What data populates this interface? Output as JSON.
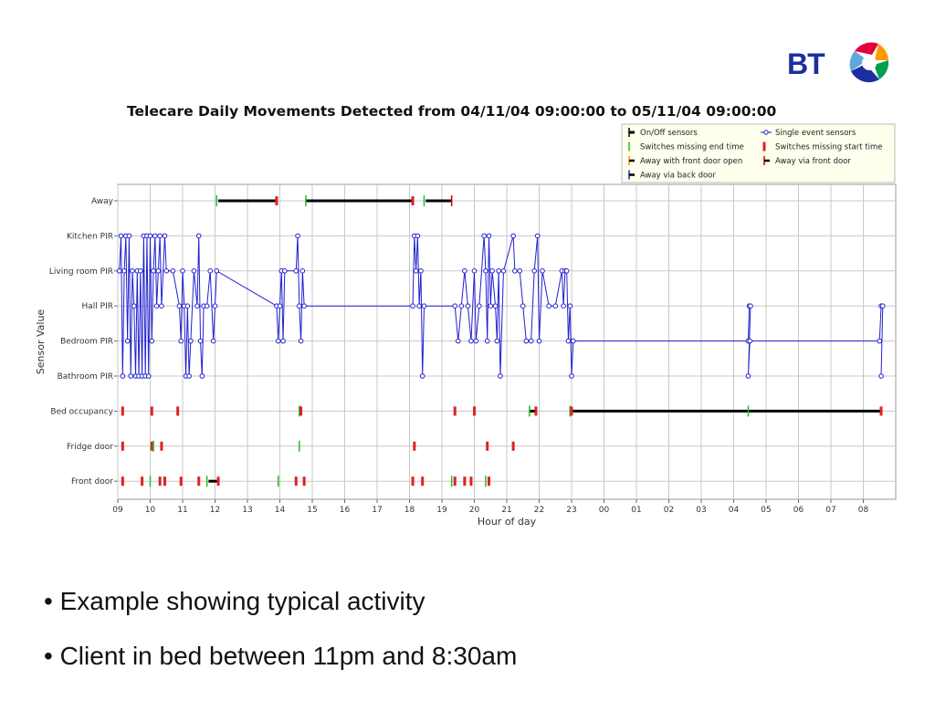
{
  "logo": {
    "text": "BT"
  },
  "bullets": [
    "• Example showing typical activity",
    "• Client in bed between 11pm and 8:30am"
  ],
  "colors": {
    "onoff": "#000000",
    "single": "#2020d0",
    "missing_end": "#22bb22",
    "missing_start": "#dd2222",
    "away_front_open": "#ff9900",
    "away_front": "#cc0000",
    "away_back": "#2020d0",
    "grid": "#c8c8c8"
  },
  "chart_data": {
    "type": "scatter",
    "title": "Telecare Daily Movements Detected from 04/11/04 09:00:00 to 05/11/04 09:00:00",
    "xlabel": "Hour of day",
    "ylabel": "Sensor Value",
    "xlim": [
      9,
      33
    ],
    "x_ticks": [
      "09",
      "10",
      "11",
      "12",
      "13",
      "14",
      "15",
      "16",
      "17",
      "18",
      "19",
      "20",
      "21",
      "22",
      "23",
      "00",
      "01",
      "02",
      "03",
      "04",
      "05",
      "06",
      "07",
      "08"
    ],
    "categories": [
      "Away",
      "Kitchen PIR",
      "Living room PIR",
      "Hall PIR",
      "Bedroom PIR",
      "Bathroom PIR",
      "Bed occupancy",
      "Fridge door",
      "Front door"
    ],
    "legend": {
      "position": "top-right",
      "entries": [
        {
          "label": "On/Off sensors",
          "symbol": "onoff"
        },
        {
          "label": "Single event sensors",
          "symbol": "single"
        },
        {
          "label": "Switches missing end time",
          "symbol": "missing_end"
        },
        {
          "label": "Switches missing start time",
          "symbol": "missing_start"
        },
        {
          "label": "Away with front door open",
          "symbol": "away_front_open"
        },
        {
          "label": "Away via front door",
          "symbol": "away_front"
        },
        {
          "label": "Away via back door",
          "symbol": "away_back"
        }
      ]
    },
    "onoff_intervals": [
      {
        "sensor": "Away",
        "start": 12.1,
        "end": 13.9
      },
      {
        "sensor": "Away",
        "start": 14.8,
        "end": 18.1
      },
      {
        "sensor": "Away",
        "start": 18.5,
        "end": 19.3
      },
      {
        "sensor": "Front door",
        "start": 11.8,
        "end": 12.1
      },
      {
        "sensor": "Bed occupancy",
        "start": 21.7,
        "end": 21.9
      },
      {
        "sensor": "Bed occupancy",
        "start": 23.0,
        "end": 28.45
      },
      {
        "sensor": "Bed occupancy",
        "start": 28.45,
        "end": 32.55
      }
    ],
    "event_ticks": [
      {
        "sensor": "Away",
        "x": 12.05,
        "kind": "missing_end"
      },
      {
        "sensor": "Away",
        "x": 13.9,
        "kind": "missing_start"
      },
      {
        "sensor": "Away",
        "x": 14.8,
        "kind": "missing_end"
      },
      {
        "sensor": "Away",
        "x": 18.1,
        "kind": "missing_start"
      },
      {
        "sensor": "Away",
        "x": 18.45,
        "kind": "missing_end"
      },
      {
        "sensor": "Away",
        "x": 19.3,
        "kind": "away_front"
      },
      {
        "sensor": "Bed occupancy",
        "x": 9.15,
        "kind": "missing_start"
      },
      {
        "sensor": "Bed occupancy",
        "x": 10.05,
        "kind": "missing_start"
      },
      {
        "sensor": "Bed occupancy",
        "x": 10.85,
        "kind": "missing_start"
      },
      {
        "sensor": "Bed occupancy",
        "x": 14.6,
        "kind": "missing_end"
      },
      {
        "sensor": "Bed occupancy",
        "x": 14.65,
        "kind": "missing_start"
      },
      {
        "sensor": "Bed occupancy",
        "x": 19.4,
        "kind": "missing_start"
      },
      {
        "sensor": "Bed occupancy",
        "x": 20.0,
        "kind": "missing_start"
      },
      {
        "sensor": "Bed occupancy",
        "x": 21.7,
        "kind": "missing_end"
      },
      {
        "sensor": "Bed occupancy",
        "x": 21.9,
        "kind": "missing_start"
      },
      {
        "sensor": "Bed occupancy",
        "x": 22.95,
        "kind": "missing_end"
      },
      {
        "sensor": "Bed occupancy",
        "x": 23.0,
        "kind": "missing_start"
      },
      {
        "sensor": "Bed occupancy",
        "x": 28.45,
        "kind": "missing_end"
      },
      {
        "sensor": "Bed occupancy",
        "x": 32.55,
        "kind": "missing_start"
      },
      {
        "sensor": "Fridge door",
        "x": 9.15,
        "kind": "missing_start"
      },
      {
        "sensor": "Fridge door",
        "x": 10.05,
        "kind": "missing_start"
      },
      {
        "sensor": "Fridge door",
        "x": 10.1,
        "kind": "missing_end"
      },
      {
        "sensor": "Fridge door",
        "x": 10.35,
        "kind": "missing_start"
      },
      {
        "sensor": "Fridge door",
        "x": 14.6,
        "kind": "missing_end"
      },
      {
        "sensor": "Fridge door",
        "x": 18.15,
        "kind": "missing_start"
      },
      {
        "sensor": "Fridge door",
        "x": 20.4,
        "kind": "missing_start"
      },
      {
        "sensor": "Fridge door",
        "x": 21.2,
        "kind": "missing_start"
      },
      {
        "sensor": "Front door",
        "x": 9.15,
        "kind": "missing_start"
      },
      {
        "sensor": "Front door",
        "x": 9.75,
        "kind": "missing_start"
      },
      {
        "sensor": "Front door",
        "x": 10.0,
        "kind": "missing_end"
      },
      {
        "sensor": "Front door",
        "x": 10.3,
        "kind": "missing_start"
      },
      {
        "sensor": "Front door",
        "x": 10.45,
        "kind": "missing_start"
      },
      {
        "sensor": "Front door",
        "x": 10.95,
        "kind": "missing_start"
      },
      {
        "sensor": "Front door",
        "x": 11.5,
        "kind": "missing_start"
      },
      {
        "sensor": "Front door",
        "x": 11.75,
        "kind": "missing_end"
      },
      {
        "sensor": "Front door",
        "x": 12.1,
        "kind": "missing_start"
      },
      {
        "sensor": "Front door",
        "x": 13.95,
        "kind": "missing_end"
      },
      {
        "sensor": "Front door",
        "x": 14.5,
        "kind": "missing_start"
      },
      {
        "sensor": "Front door",
        "x": 14.75,
        "kind": "missing_start"
      },
      {
        "sensor": "Front door",
        "x": 18.1,
        "kind": "missing_start"
      },
      {
        "sensor": "Front door",
        "x": 18.4,
        "kind": "missing_start"
      },
      {
        "sensor": "Front door",
        "x": 19.3,
        "kind": "missing_end"
      },
      {
        "sensor": "Front door",
        "x": 19.4,
        "kind": "missing_start"
      },
      {
        "sensor": "Front door",
        "x": 19.7,
        "kind": "missing_start"
      },
      {
        "sensor": "Front door",
        "x": 19.9,
        "kind": "missing_start"
      },
      {
        "sensor": "Front door",
        "x": 20.35,
        "kind": "missing_end"
      },
      {
        "sensor": "Front door",
        "x": 20.45,
        "kind": "missing_start"
      }
    ],
    "single_event_series": [
      {
        "x": 9.05,
        "y": "Living room PIR"
      },
      {
        "x": 9.1,
        "y": "Kitchen PIR"
      },
      {
        "x": 9.15,
        "y": "Bathroom PIR"
      },
      {
        "x": 9.2,
        "y": "Living room PIR"
      },
      {
        "x": 9.25,
        "y": "Kitchen PIR"
      },
      {
        "x": 9.3,
        "y": "Bedroom PIR"
      },
      {
        "x": 9.35,
        "y": "Kitchen PIR"
      },
      {
        "x": 9.4,
        "y": "Bathroom PIR"
      },
      {
        "x": 9.45,
        "y": "Living room PIR"
      },
      {
        "x": 9.5,
        "y": "Hall PIR"
      },
      {
        "x": 9.55,
        "y": "Bathroom PIR"
      },
      {
        "x": 9.6,
        "y": "Living room PIR"
      },
      {
        "x": 9.65,
        "y": "Bathroom PIR"
      },
      {
        "x": 9.7,
        "y": "Living room PIR"
      },
      {
        "x": 9.75,
        "y": "Bathroom PIR"
      },
      {
        "x": 9.8,
        "y": "Kitchen PIR"
      },
      {
        "x": 9.85,
        "y": "Bathroom PIR"
      },
      {
        "x": 9.9,
        "y": "Kitchen PIR"
      },
      {
        "x": 9.95,
        "y": "Bathroom PIR"
      },
      {
        "x": 10.0,
        "y": "Kitchen PIR"
      },
      {
        "x": 10.05,
        "y": "Bedroom PIR"
      },
      {
        "x": 10.1,
        "y": "Living room PIR"
      },
      {
        "x": 10.15,
        "y": "Kitchen PIR"
      },
      {
        "x": 10.2,
        "y": "Hall PIR"
      },
      {
        "x": 10.25,
        "y": "Living room PIR"
      },
      {
        "x": 10.3,
        "y": "Kitchen PIR"
      },
      {
        "x": 10.35,
        "y": "Hall PIR"
      },
      {
        "x": 10.45,
        "y": "Kitchen PIR"
      },
      {
        "x": 10.5,
        "y": "Living room PIR"
      },
      {
        "x": 10.7,
        "y": "Living room PIR"
      },
      {
        "x": 10.9,
        "y": "Hall PIR"
      },
      {
        "x": 10.95,
        "y": "Bedroom PIR"
      },
      {
        "x": 11.0,
        "y": "Living room PIR"
      },
      {
        "x": 11.05,
        "y": "Hall PIR"
      },
      {
        "x": 11.1,
        "y": "Bathroom PIR"
      },
      {
        "x": 11.15,
        "y": "Hall PIR"
      },
      {
        "x": 11.2,
        "y": "Bathroom PIR"
      },
      {
        "x": 11.25,
        "y": "Bedroom PIR"
      },
      {
        "x": 11.35,
        "y": "Living room PIR"
      },
      {
        "x": 11.45,
        "y": "Hall PIR"
      },
      {
        "x": 11.5,
        "y": "Kitchen PIR"
      },
      {
        "x": 11.55,
        "y": "Bedroom PIR"
      },
      {
        "x": 11.6,
        "y": "Bathroom PIR"
      },
      {
        "x": 11.65,
        "y": "Hall PIR"
      },
      {
        "x": 11.75,
        "y": "Hall PIR"
      },
      {
        "x": 11.85,
        "y": "Living room PIR"
      },
      {
        "x": 11.95,
        "y": "Bedroom PIR"
      },
      {
        "x": 12.0,
        "y": "Hall PIR"
      },
      {
        "x": 12.05,
        "y": "Living room PIR"
      },
      {
        "x": 13.9,
        "y": "Hall PIR"
      },
      {
        "x": 13.95,
        "y": "Bedroom PIR"
      },
      {
        "x": 14.0,
        "y": "Hall PIR"
      },
      {
        "x": 14.05,
        "y": "Living room PIR"
      },
      {
        "x": 14.1,
        "y": "Bedroom PIR"
      },
      {
        "x": 14.15,
        "y": "Living room PIR"
      },
      {
        "x": 14.5,
        "y": "Living room PIR"
      },
      {
        "x": 14.55,
        "y": "Kitchen PIR"
      },
      {
        "x": 14.6,
        "y": "Hall PIR"
      },
      {
        "x": 14.65,
        "y": "Bedroom PIR"
      },
      {
        "x": 14.7,
        "y": "Living room PIR"
      },
      {
        "x": 14.75,
        "y": "Hall PIR"
      },
      {
        "x": 18.1,
        "y": "Hall PIR"
      },
      {
        "x": 18.15,
        "y": "Kitchen PIR"
      },
      {
        "x": 18.2,
        "y": "Living room PIR"
      },
      {
        "x": 18.25,
        "y": "Kitchen PIR"
      },
      {
        "x": 18.3,
        "y": "Hall PIR"
      },
      {
        "x": 18.35,
        "y": "Living room PIR"
      },
      {
        "x": 18.4,
        "y": "Bathroom PIR"
      },
      {
        "x": 18.45,
        "y": "Hall PIR"
      },
      {
        "x": 19.4,
        "y": "Hall PIR"
      },
      {
        "x": 19.5,
        "y": "Bedroom PIR"
      },
      {
        "x": 19.6,
        "y": "Hall PIR"
      },
      {
        "x": 19.7,
        "y": "Living room PIR"
      },
      {
        "x": 19.8,
        "y": "Hall PIR"
      },
      {
        "x": 19.9,
        "y": "Bedroom PIR"
      },
      {
        "x": 20.0,
        "y": "Living room PIR"
      },
      {
        "x": 20.05,
        "y": "Bedroom PIR"
      },
      {
        "x": 20.15,
        "y": "Hall PIR"
      },
      {
        "x": 20.3,
        "y": "Kitchen PIR"
      },
      {
        "x": 20.35,
        "y": "Living room PIR"
      },
      {
        "x": 20.4,
        "y": "Bedroom PIR"
      },
      {
        "x": 20.45,
        "y": "Kitchen PIR"
      },
      {
        "x": 20.5,
        "y": "Hall PIR"
      },
      {
        "x": 20.55,
        "y": "Living room PIR"
      },
      {
        "x": 20.65,
        "y": "Hall PIR"
      },
      {
        "x": 20.7,
        "y": "Bedroom PIR"
      },
      {
        "x": 20.75,
        "y": "Living room PIR"
      },
      {
        "x": 20.8,
        "y": "Bathroom PIR"
      },
      {
        "x": 20.9,
        "y": "Living room PIR"
      },
      {
        "x": 21.2,
        "y": "Kitchen PIR"
      },
      {
        "x": 21.25,
        "y": "Living room PIR"
      },
      {
        "x": 21.4,
        "y": "Living room PIR"
      },
      {
        "x": 21.5,
        "y": "Hall PIR"
      },
      {
        "x": 21.6,
        "y": "Bedroom PIR"
      },
      {
        "x": 21.75,
        "y": "Bedroom PIR"
      },
      {
        "x": 21.85,
        "y": "Living room PIR"
      },
      {
        "x": 21.95,
        "y": "Kitchen PIR"
      },
      {
        "x": 22.0,
        "y": "Bedroom PIR"
      },
      {
        "x": 22.1,
        "y": "Living room PIR"
      },
      {
        "x": 22.3,
        "y": "Hall PIR"
      },
      {
        "x": 22.5,
        "y": "Hall PIR"
      },
      {
        "x": 22.7,
        "y": "Living room PIR"
      },
      {
        "x": 22.75,
        "y": "Hall PIR"
      },
      {
        "x": 22.8,
        "y": "Living room PIR"
      },
      {
        "x": 22.85,
        "y": "Living room PIR"
      },
      {
        "x": 22.9,
        "y": "Bedroom PIR"
      },
      {
        "x": 22.95,
        "y": "Hall PIR"
      },
      {
        "x": 23.0,
        "y": "Bathroom PIR"
      },
      {
        "x": 23.05,
        "y": "Bedroom PIR"
      },
      {
        "x": 28.45,
        "y": "Bedroom PIR"
      },
      {
        "x": 28.48,
        "y": "Hall PIR"
      },
      {
        "x": 28.52,
        "y": "Hall PIR"
      },
      {
        "x": 28.45,
        "y": "Bathroom PIR"
      },
      {
        "x": 28.5,
        "y": "Bedroom PIR"
      },
      {
        "x": 32.5,
        "y": "Bedroom PIR"
      },
      {
        "x": 32.55,
        "y": "Hall PIR"
      },
      {
        "x": 32.6,
        "y": "Hall PIR"
      },
      {
        "x": 32.55,
        "y": "Bathroom PIR"
      }
    ]
  }
}
